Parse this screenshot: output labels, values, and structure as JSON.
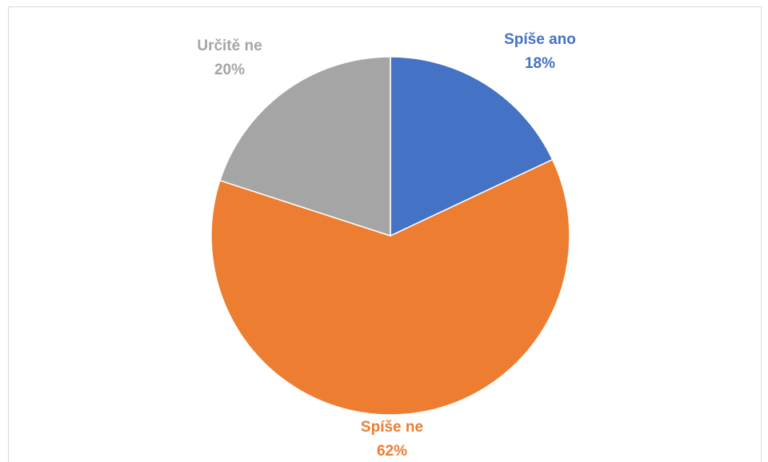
{
  "chart_data": {
    "type": "pie",
    "categories": [
      "Spíše ano",
      "Spíše ne",
      "Určitě ne"
    ],
    "values": [
      18,
      62,
      20
    ],
    "value_labels": [
      "18%",
      "62%",
      "20%"
    ],
    "colors": [
      "#4472c4",
      "#ed7d31",
      "#a5a5a5"
    ]
  }
}
